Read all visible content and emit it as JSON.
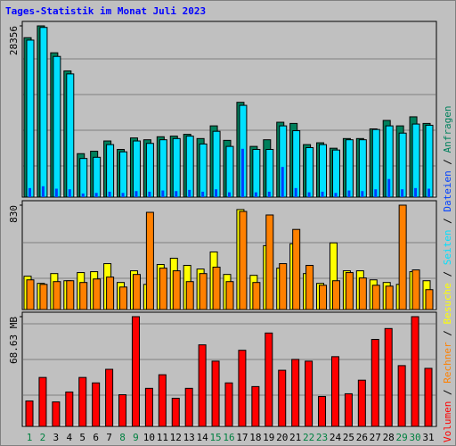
{
  "chart_data": {
    "type": "bar",
    "title": "Tages-Statistik im Monat Juli 2023",
    "categories": [
      "1",
      "2",
      "3",
      "4",
      "5",
      "6",
      "7",
      "8",
      "9",
      "10",
      "11",
      "12",
      "13",
      "14",
      "15",
      "16",
      "17",
      "18",
      "19",
      "20",
      "21",
      "22",
      "23",
      "24",
      "25",
      "26",
      "27",
      "28",
      "29",
      "30",
      "31"
    ],
    "category_colors": [
      "#008040",
      "#008040",
      "#000000",
      "#000000",
      "#000000",
      "#000000",
      "#000000",
      "#008040",
      "#008040",
      "#000000",
      "#000000",
      "#000000",
      "#000000",
      "#000000",
      "#008040",
      "#008040",
      "#000000",
      "#000000",
      "#000000",
      "#000000",
      "#000000",
      "#008040",
      "#008040",
      "#000000",
      "#000000",
      "#000000",
      "#000000",
      "#000000",
      "#008040",
      "#008040",
      "#000000"
    ],
    "legend_separator": " / ",
    "panels": [
      {
        "ylim": [
          0,
          28356
        ],
        "yticks": [
          28356
        ],
        "series": [
          {
            "name": "Anfragen",
            "color": "#00805c",
            "values": [
              26400,
              28356,
              23900,
              20900,
              7200,
              7600,
              9300,
              7900,
              9800,
              9500,
              10000,
              10100,
              10400,
              9700,
              11800,
              9400,
              15700,
              8400,
              9500,
              12400,
              12200,
              8700,
              9000,
              8100,
              9700,
              9700,
              11300,
              12700,
              11800,
              13300,
              12200
            ]
          },
          {
            "name": "Seiten",
            "color": "#00e0ff",
            "values": [
              26000,
              28100,
              23300,
              20400,
              6400,
              6600,
              8700,
              7500,
              9300,
              8900,
              9500,
              9700,
              10100,
              8800,
              10900,
              8400,
              15200,
              7900,
              7900,
              11800,
              11000,
              8200,
              8700,
              7800,
              9500,
              9500,
              11200,
              11800,
              10600,
              12100,
              11900
            ]
          },
          {
            "name": "Dateien",
            "color": "#0040ff",
            "values": [
              1500,
              1800,
              1400,
              1300,
              600,
              700,
              900,
              700,
              1000,
              900,
              1100,
              1000,
              1200,
              900,
              1300,
              800,
              8000,
              800,
              900,
              5000,
              1500,
              800,
              900,
              700,
              1100,
              1000,
              1300,
              3000,
              1300,
              1500,
              1400
            ]
          }
        ]
      },
      {
        "ylim": [
          0,
          830
        ],
        "yticks": [
          830
        ],
        "series": [
          {
            "name": "Besuche",
            "color": "#ffff00",
            "values": [
              265,
              208,
              286,
              229,
              294,
              301,
              365,
              215,
              308,
              200,
              358,
              408,
              351,
              322,
              458,
              279,
              795,
              272,
              508,
              329,
              523,
              286,
              208,
              530,
              308,
              308,
              236,
              215,
              200,
              301,
              229
            ]
          },
          {
            "name": "Rechner",
            "color": "#ff8000",
            "values": [
              236,
              200,
              222,
              229,
              215,
              243,
              258,
              179,
              279,
              773,
              329,
              308,
              222,
              286,
              337,
              222,
              780,
              215,
              752,
              365,
              637,
              351,
              193,
              229,
              294,
              251,
              193,
              186,
              830,
              315,
              158
            ]
          }
        ]
      },
      {
        "ylim": [
          0,
          68.63
        ],
        "yticks": [
          {
            "value": 68.63,
            "label": "68.63 MB"
          }
        ],
        "series": [
          {
            "name": "Volumen",
            "color": "#ff0000",
            "values": [
              15.9,
              30.6,
              15.3,
              21.5,
              30.6,
              27.2,
              35.7,
              19.8,
              68.63,
              23.8,
              32.3,
              17.6,
              23.8,
              51.0,
              40.8,
              27.2,
              47.6,
              24.9,
              58.4,
              35.1,
              41.9,
              40.8,
              18.7,
              43.6,
              20.4,
              28.9,
              54.4,
              61.2,
              38.0,
              68.63,
              36.3
            ]
          }
        ]
      }
    ]
  }
}
